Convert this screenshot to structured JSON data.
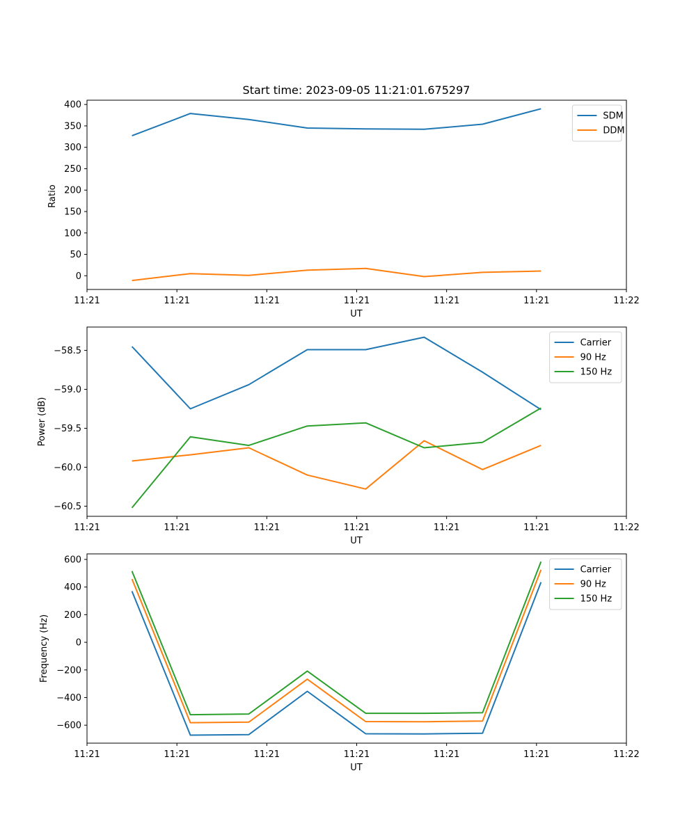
{
  "chart_data": [
    {
      "type": "line",
      "title": "Start time: 2023-09-05 11:21:01.675297",
      "xlabel": "UT",
      "ylabel": "Ratio",
      "xlim": [
        0,
        12
      ],
      "ylim": [
        -32,
        410
      ],
      "x": [
        1,
        2.3,
        3.6,
        4.9,
        6.2,
        7.5,
        8.8,
        10.1
      ],
      "xticks": [
        0,
        2,
        4,
        6,
        8,
        10,
        12
      ],
      "xtick_labels": [
        "11:21",
        "11:21",
        "11:21",
        "11:21",
        "11:21",
        "11:21",
        "11:22"
      ],
      "yticks": [
        0,
        50,
        100,
        150,
        200,
        250,
        300,
        350,
        400
      ],
      "ytick_labels": [
        "0",
        "50",
        "100",
        "150",
        "200",
        "250",
        "300",
        "350",
        "400"
      ],
      "legend_position": "top-right",
      "series": [
        {
          "name": "SDM",
          "color": "#1f77b4",
          "values": [
            327,
            379,
            365,
            345,
            343,
            342,
            354,
            390
          ]
        },
        {
          "name": "DDM",
          "color": "#ff7f0e",
          "values": [
            -11,
            5,
            1,
            13,
            17,
            -2,
            8,
            11
          ]
        }
      ]
    },
    {
      "type": "line",
      "title": "",
      "xlabel": "UT",
      "ylabel": "Power (dB)",
      "xlim": [
        0,
        12
      ],
      "ylim": [
        -60.63,
        -58.2
      ],
      "x": [
        1,
        2.3,
        3.6,
        4.9,
        6.2,
        7.5,
        8.8,
        10.1
      ],
      "xticks": [
        0,
        2,
        4,
        6,
        8,
        10,
        12
      ],
      "xtick_labels": [
        "11:21",
        "11:21",
        "11:21",
        "11:21",
        "11:21",
        "11:21",
        "11:22"
      ],
      "yticks": [
        -60.5,
        -60.0,
        -59.5,
        -59.0,
        -58.5
      ],
      "ytick_labels": [
        "−60.5",
        "−60.0",
        "−59.5",
        "−59.0",
        "−58.5"
      ],
      "legend_position": "top-right",
      "series": [
        {
          "name": "Carrier",
          "color": "#1f77b4",
          "values": [
            -58.45,
            -59.25,
            -58.94,
            -58.49,
            -58.49,
            -58.33,
            -58.78,
            -59.26
          ]
        },
        {
          "name": "90 Hz",
          "color": "#ff7f0e",
          "values": [
            -59.92,
            -59.84,
            -59.75,
            -60.1,
            -60.28,
            -59.66,
            -60.03,
            -59.72
          ]
        },
        {
          "name": "150 Hz",
          "color": "#2ca02c",
          "values": [
            -60.52,
            -59.61,
            -59.72,
            -59.47,
            -59.43,
            -59.75,
            -59.68,
            -59.24
          ]
        }
      ]
    },
    {
      "type": "line",
      "title": "",
      "xlabel": "UT",
      "ylabel": "Frequency (Hz)",
      "xlim": [
        0,
        12
      ],
      "ylim": [
        -730,
        640
      ],
      "x": [
        1,
        2.3,
        3.6,
        4.9,
        6.2,
        7.5,
        8.8,
        10.1
      ],
      "xticks": [
        0,
        2,
        4,
        6,
        8,
        10,
        12
      ],
      "xtick_labels": [
        "11:21",
        "11:21",
        "11:21",
        "11:21",
        "11:21",
        "11:21",
        "11:22"
      ],
      "yticks": [
        -600,
        -400,
        -200,
        0,
        200,
        400,
        600
      ],
      "ytick_labels": [
        "−600",
        "−400",
        "−200",
        "0",
        "200",
        "400",
        "600"
      ],
      "legend_position": "top-right",
      "series": [
        {
          "name": "Carrier",
          "color": "#1f77b4",
          "values": [
            370,
            -672,
            -668,
            -355,
            -662,
            -663,
            -658,
            435
          ]
        },
        {
          "name": "90 Hz",
          "color": "#ff7f0e",
          "values": [
            458,
            -582,
            -578,
            -267,
            -574,
            -575,
            -570,
            525
          ]
        },
        {
          "name": "150 Hz",
          "color": "#2ca02c",
          "values": [
            515,
            -524,
            -519,
            -208,
            -514,
            -514,
            -510,
            584
          ]
        }
      ]
    }
  ]
}
